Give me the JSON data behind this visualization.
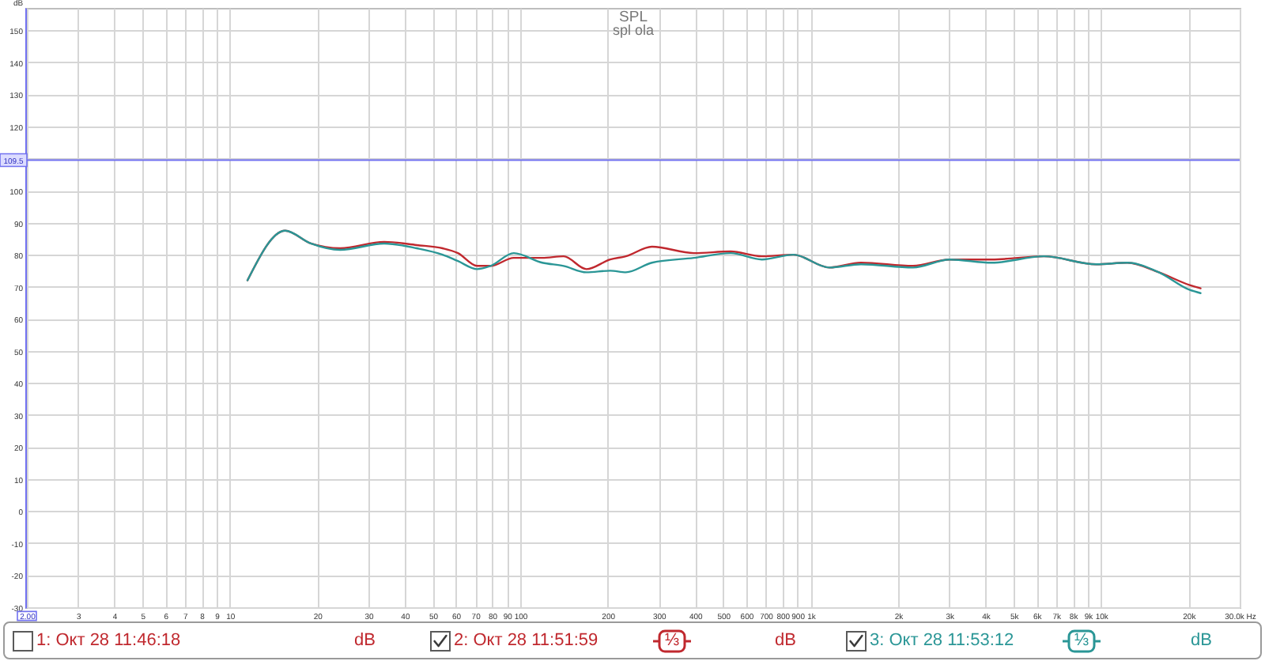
{
  "chart_data": {
    "type": "line",
    "title": "SPL",
    "subtitle": "spl ola",
    "ylabel": "dB",
    "x": [
      11.5,
      15.5,
      19,
      24,
      34,
      44,
      54,
      61,
      71,
      79,
      95,
      119,
      141,
      169,
      204,
      231,
      284,
      396,
      530,
      679,
      871,
      1160,
      1490,
      2250,
      3010,
      4200,
      6350,
      9620,
      12300,
      15800,
      20200,
      22000
    ],
    "series": [
      {
        "name": "2: Окт 28 11:51:59",
        "color": "#c0282e",
        "values": [
          72,
          87.5,
          83.5,
          82,
          84,
          83,
          82,
          80.5,
          76.5,
          76.5,
          79,
          79,
          79.5,
          75.5,
          78.5,
          79.5,
          82.5,
          80.5,
          81,
          79.5,
          80,
          76,
          77.5,
          76.5,
          78.5,
          78.5,
          79.5,
          77,
          77.5,
          74.5,
          70.5,
          69.5
        ]
      },
      {
        "name": "3: Окт 28 11:53:12",
        "color": "#2a9696",
        "values": [
          72,
          87.5,
          83.5,
          81.5,
          83.5,
          82,
          80,
          78,
          75.5,
          76.5,
          80.5,
          77.5,
          76.5,
          74.5,
          75,
          74.5,
          77.5,
          79,
          80.5,
          78.5,
          80,
          76,
          77,
          76,
          78.5,
          77.5,
          79.5,
          77,
          77.5,
          74.5,
          69,
          68
        ]
      }
    ],
    "xlim": [
      2,
      30000
    ],
    "ylim": [
      -30,
      157
    ],
    "xticks": [
      {
        "value": 2,
        "label": "2.00"
      },
      3,
      4,
      5,
      6,
      7,
      8,
      9,
      10,
      20,
      30,
      40,
      50,
      60,
      70,
      80,
      90,
      100,
      200,
      300,
      400,
      500,
      600,
      700,
      800,
      900,
      {
        "value": 1000,
        "label": "1k"
      },
      {
        "value": 2000,
        "label": "2k"
      },
      {
        "value": 3000,
        "label": "3k"
      },
      {
        "value": 4000,
        "label": "4k"
      },
      {
        "value": 5000,
        "label": "5k"
      },
      {
        "value": 6000,
        "label": "6k"
      },
      {
        "value": 7000,
        "label": "7k"
      },
      {
        "value": 8000,
        "label": "8k"
      },
      {
        "value": 9000,
        "label": "9k"
      },
      {
        "value": 10000,
        "label": "10k"
      },
      {
        "value": 20000,
        "label": "20k"
      },
      {
        "value": 30000,
        "label": "30.0k Hz"
      }
    ],
    "yticks": [
      -30,
      -20,
      -10,
      0,
      10,
      20,
      30,
      40,
      50,
      60,
      70,
      80,
      90,
      100,
      {
        "value": 110,
        "label": null
      },
      120,
      130,
      140,
      150
    ],
    "log": "x",
    "grid": true,
    "legend": "bottom",
    "ref_lines": [
      {
        "axis": "y",
        "value": 109.5,
        "label": "109.5",
        "color": "#7070f0"
      }
    ],
    "annotations": [
      "1: Окт 28 11:46:18",
      "dB",
      "⅓",
      "dB",
      "⅓",
      "dB"
    ]
  }
}
